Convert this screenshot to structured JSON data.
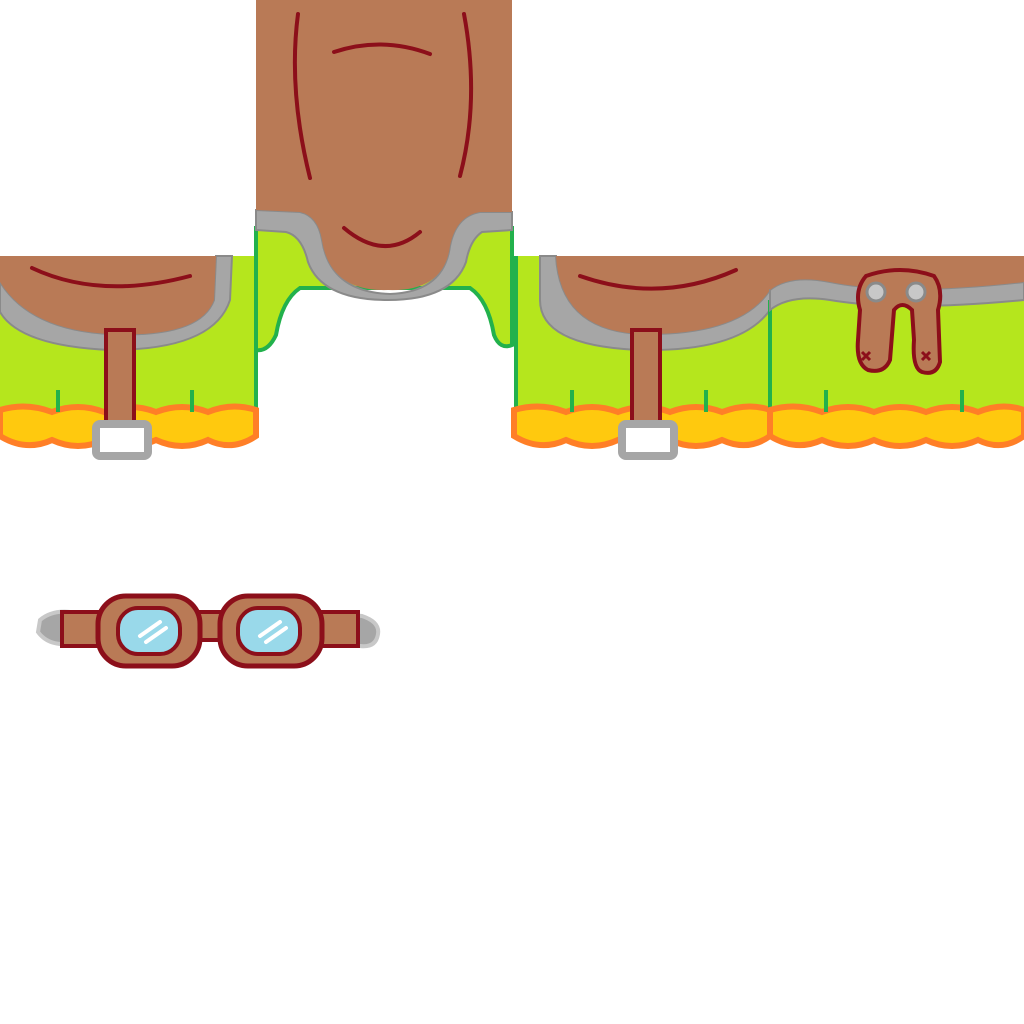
{
  "texture": {
    "kind": "shirt-template",
    "background": "#ffffff",
    "parts": [
      {
        "id": "torso-front",
        "icon": "torso-front-panel"
      },
      {
        "id": "left-side",
        "icon": "belted-vest-panel"
      },
      {
        "id": "right-side",
        "icon": "belted-vest-panel"
      },
      {
        "id": "back",
        "icon": "vest-back-with-goggles-strap"
      },
      {
        "id": "goggles",
        "icon": "goggles-icon"
      }
    ]
  },
  "colors": {
    "leather": "#b97a56",
    "leather_dark": "#8c0f1a",
    "trim_gray": "#a6a6a6",
    "trim_light": "#c8c8c8",
    "shirt_green": "#b5e61d",
    "shirt_green_edge": "#22b14c",
    "hem_orange": "#ff7f27",
    "hem_yellow": "#ffc90e",
    "lens_blue": "#99d9ea",
    "buckle_fill": "#ffffff"
  }
}
